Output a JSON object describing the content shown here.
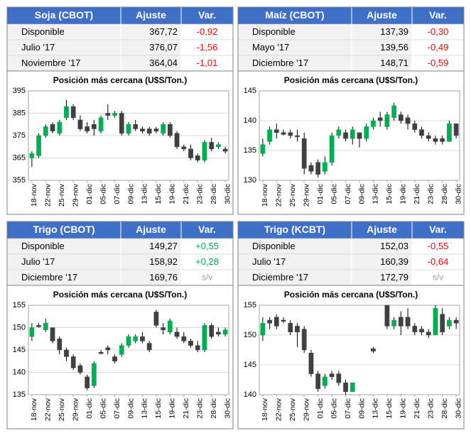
{
  "tables": [
    {
      "header": [
        "Soja (CBOT)",
        "Ajuste",
        "Var."
      ],
      "rows": [
        [
          "Disponible",
          "367,72",
          "-0,92"
        ],
        [
          "Julio '17",
          "376,07",
          "-1,56"
        ],
        [
          "Noviembre '17",
          "364,04",
          "-1,01"
        ]
      ]
    },
    {
      "header": [
        "Maíz (CBOT)",
        "Ajuste",
        "Var."
      ],
      "rows": [
        [
          "Disponible",
          "137,39",
          "-0,30"
        ],
        [
          "Mayo '17",
          "139,56",
          "-0,49"
        ],
        [
          "Diciembre '17",
          "148,71",
          "-0,59"
        ]
      ]
    },
    {
      "header": [
        "Trigo (CBOT)",
        "Ajuste",
        "Var."
      ],
      "rows": [
        [
          "Disponible",
          "149,27",
          "+0,55"
        ],
        [
          "Julio '17",
          "158,92",
          "+0,28"
        ],
        [
          "Diciembre '17",
          "169,76",
          "s/v"
        ]
      ]
    },
    {
      "header": [
        "Trigo (KCBT)",
        "Ajuste",
        "Var."
      ],
      "rows": [
        [
          "Disponible",
          "152,03",
          "-0,55"
        ],
        [
          "Julio '17",
          "160,39",
          "-0,64"
        ],
        [
          "Diciembre '17",
          "172,79",
          "s/v"
        ]
      ]
    }
  ],
  "chart_data": [
    {
      "type": "candlestick",
      "title": "Posición más cercana (U$S/Ton.)",
      "categories": [
        "18-nov",
        null,
        "22-nov",
        null,
        "25-nov",
        null,
        "29-nov",
        null,
        "01-dic",
        null,
        "05-dic",
        null,
        "07-dic",
        null,
        "09-dic",
        null,
        "13-dic",
        null,
        "15-dic",
        null,
        "19-dic",
        null,
        "21-dic",
        null,
        "23-dic",
        null,
        "28-dic",
        null,
        "30-dic"
      ],
      "open": [
        365,
        366,
        375,
        380,
        376,
        383,
        388,
        382,
        379,
        380,
        377,
        385,
        384,
        385,
        376,
        380,
        378,
        378,
        378,
        376,
        380,
        376,
        370,
        369,
        366,
        364,
        372,
        370,
        369
      ],
      "high": [
        368,
        376,
        380,
        381,
        382,
        391,
        389,
        384,
        381,
        382,
        384,
        389,
        386,
        386,
        381,
        382,
        379,
        379,
        379,
        381,
        381,
        377,
        371,
        371,
        367,
        373,
        374,
        372,
        370
      ],
      "low": [
        361,
        365,
        374,
        376,
        375,
        382,
        382,
        377,
        376,
        375,
        376,
        382,
        383,
        375,
        375,
        377,
        376,
        375,
        376,
        375,
        374,
        369,
        368,
        364,
        363,
        363,
        368,
        369,
        367
      ],
      "close": [
        367,
        375,
        379,
        377,
        381,
        388,
        383,
        378,
        377,
        378,
        383,
        384,
        385,
        376,
        380,
        378,
        377,
        376,
        377,
        380,
        375,
        370,
        369,
        365,
        364,
        372,
        369,
        371,
        368
      ],
      "up_color": "#00b050",
      "down_color": "#404040",
      "ylim": [
        355,
        395
      ],
      "yticks": [
        355,
        365,
        375,
        385,
        395
      ],
      "grid": true
    },
    {
      "type": "candlestick",
      "title": "Posición más cercana (U$S/Ton.)",
      "categories": [
        "18-nov",
        null,
        "22-nov",
        null,
        "25-nov",
        null,
        "29-nov",
        null,
        "01-dic",
        null,
        "05-dic",
        null,
        "07-dic",
        null,
        "09-dic",
        null,
        "13-dic",
        null,
        "15-dic",
        null,
        "19-dic",
        null,
        "21-dic",
        null,
        "23-dic",
        null,
        "28-dic",
        null,
        "30-dic"
      ],
      "open": [
        134.5,
        136.5,
        138.5,
        138,
        138,
        137.5,
        137,
        132.5,
        133,
        131.5,
        133,
        137.5,
        138,
        137,
        138,
        137,
        139,
        140.5,
        139,
        140.5,
        141,
        140.5,
        139.5,
        138.5,
        137.5,
        137,
        137,
        136.5,
        139.5
      ],
      "high": [
        137,
        139,
        139.5,
        138.5,
        138.5,
        138.5,
        138,
        133,
        133.5,
        134,
        138,
        139,
        138.5,
        139,
        138,
        139.5,
        140.5,
        141.5,
        141.5,
        143,
        141.5,
        141,
        140,
        139,
        138,
        137.5,
        137.5,
        140,
        139.5
      ],
      "low": [
        134,
        136,
        137,
        137.5,
        137,
        136.5,
        131,
        131,
        130.5,
        131,
        132.5,
        137,
        136.5,
        136,
        135.5,
        136.5,
        138.5,
        139,
        138.5,
        140,
        139.5,
        138.5,
        138,
        137,
        136.5,
        136,
        136,
        136.5,
        137
      ],
      "close": [
        136,
        138.5,
        138,
        137.7,
        137.5,
        137.3,
        132,
        131.5,
        131,
        133,
        137.5,
        138.5,
        137,
        138.5,
        137,
        139,
        140,
        140,
        141,
        142.5,
        140,
        139.5,
        138.5,
        137.5,
        137,
        136.5,
        136.5,
        139.5,
        137.5
      ],
      "up_color": "#00b050",
      "down_color": "#404040",
      "ylim": [
        130,
        145
      ],
      "yticks": [
        130,
        135,
        140,
        145
      ],
      "grid": true
    },
    {
      "type": "candlestick",
      "title": "Posición más cercana (U$S/Ton.)",
      "categories": [
        "18-nov",
        null,
        "22-nov",
        null,
        "25-nov",
        null,
        "29-nov",
        null,
        "01-dic",
        null,
        "05-dic",
        null,
        "07-dic",
        null,
        "09-dic",
        null,
        "13-dic",
        null,
        "15-dic",
        null,
        "19-dic",
        null,
        "21-dic",
        null,
        "23-dic",
        null,
        "28-dic",
        null,
        "30-dic"
      ],
      "open": [
        148,
        150.5,
        149.5,
        150,
        147.5,
        145,
        143.5,
        141.5,
        139,
        137,
        144.5,
        145.5,
        143.5,
        144,
        146,
        147,
        148,
        146.5,
        153.5,
        150,
        149,
        149,
        148,
        147,
        146,
        145,
        150.5,
        149,
        148.5
      ],
      "high": [
        151,
        151,
        152,
        150,
        148,
        145.5,
        144,
        142,
        139.5,
        142.5,
        145,
        146,
        144,
        146.5,
        148.5,
        148.5,
        149,
        147,
        154,
        151,
        152,
        150,
        149,
        147.5,
        147,
        151,
        151,
        150,
        150
      ],
      "low": [
        147,
        150,
        149,
        146.5,
        144,
        142.5,
        140.5,
        139.5,
        136,
        136.5,
        144,
        144,
        142,
        143.5,
        145.5,
        146.5,
        146.5,
        144.5,
        150,
        148.5,
        148.5,
        147.5,
        146.5,
        145.5,
        144.5,
        144.5,
        147.5,
        148,
        148
      ],
      "close": [
        150,
        150.2,
        151,
        147,
        145,
        143.5,
        141,
        140,
        136.5,
        142,
        144.2,
        145,
        142.5,
        146,
        148,
        148,
        147,
        145,
        150.5,
        149.5,
        151.5,
        148,
        147,
        146,
        145,
        150.5,
        148,
        148.5,
        149.5
      ],
      "up_color": "#00b050",
      "down_color": "#404040",
      "ylim": [
        135,
        155
      ],
      "yticks": [
        135,
        140,
        145,
        150,
        155
      ],
      "grid": true
    },
    {
      "type": "candlestick",
      "title": "Posición más cercana (U$S/Ton.)",
      "categories": [
        "18-nov",
        null,
        "22-nov",
        null,
        "25-nov",
        null,
        "29-nov",
        null,
        "01-dic",
        null,
        "05-dic",
        null,
        "07-dic",
        null,
        "09-dic",
        null,
        "13-dic",
        null,
        "15-dic",
        null,
        "19-dic",
        null,
        "21-dic",
        null,
        "23-dic",
        null,
        "28-dic",
        null,
        "30-dic"
      ],
      "open": [
        150,
        152.5,
        153,
        152.5,
        152,
        151.5,
        151,
        147,
        143.5,
        141.5,
        143.5,
        143.5,
        142,
        140.5,
        null,
        null,
        147.7,
        null,
        155,
        151.5,
        153,
        153,
        151.5,
        151,
        150.5,
        150,
        153.5,
        151.5,
        152.5
      ],
      "high": [
        153,
        153,
        153.5,
        153,
        152.5,
        152,
        151.5,
        147.5,
        144,
        143.5,
        144,
        144,
        142.5,
        142,
        null,
        null,
        148,
        null,
        155,
        153,
        154,
        154.5,
        152,
        151.5,
        151,
        155,
        154.5,
        153,
        153
      ],
      "low": [
        149,
        151,
        151,
        152,
        150,
        148,
        147,
        143,
        140.5,
        141,
        142.5,
        141.5,
        140,
        140.5,
        null,
        null,
        147,
        null,
        151,
        151,
        150,
        151,
        150,
        150,
        149.5,
        150,
        150,
        151,
        151
      ],
      "close": [
        152,
        152,
        151.5,
        152.3,
        150.5,
        150.5,
        147.5,
        143.5,
        141,
        143,
        143,
        142,
        140.5,
        142,
        null,
        null,
        147.3,
        null,
        151.5,
        152.5,
        151.5,
        151.5,
        150.5,
        150.5,
        150,
        154.5,
        150.5,
        152.5,
        152
      ],
      "up_color": "#00b050",
      "down_color": "#404040",
      "ylim": [
        140,
        155
      ],
      "yticks": [
        140,
        145,
        150,
        155
      ],
      "grid": true
    }
  ]
}
